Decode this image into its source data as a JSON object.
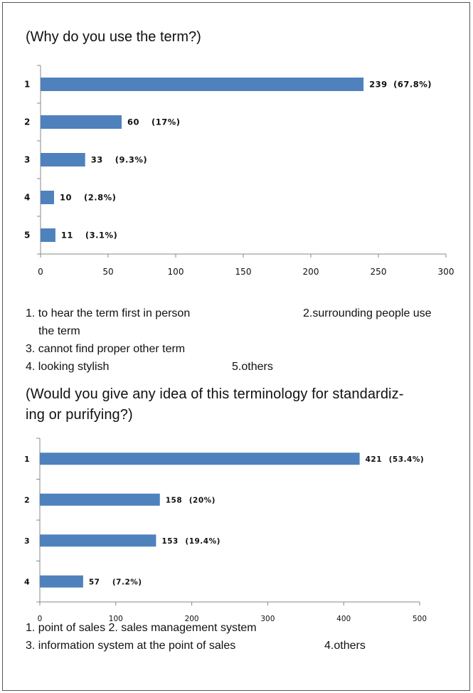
{
  "chart_data": [
    {
      "type": "bar",
      "orientation": "horizontal",
      "title": "(Why do you use the term?)",
      "categories": [
        "1",
        "2",
        "3",
        "4",
        "5"
      ],
      "values": [
        239,
        60,
        33,
        10,
        11
      ],
      "data_labels": [
        "239",
        "60",
        "33",
        "10",
        "11"
      ],
      "percent_labels": [
        "(67.8%)",
        "(17%)",
        "(9.3%)",
        "(2.8%)",
        "(3.1%)"
      ],
      "xlim": [
        0,
        300
      ],
      "xticks": [
        "0",
        "50",
        "100",
        "150",
        "200",
        "250",
        "300"
      ],
      "xtick_values": [
        0,
        50,
        100,
        150,
        200,
        250,
        300
      ],
      "bar_color": "#4f81bd",
      "grid": false
    },
    {
      "type": "bar",
      "orientation": "horizontal",
      "title": "(Would you give any idea of this terminology for standardiz-ing or purifying?)",
      "categories": [
        "1",
        "2",
        "3",
        "4"
      ],
      "values": [
        421,
        158,
        153,
        57
      ],
      "data_labels": [
        "421",
        "158",
        "153",
        "57"
      ],
      "percent_labels": [
        "(53.4%)",
        "(20%)",
        "(19.4%)",
        "(7.2%)"
      ],
      "xlim": [
        0,
        500
      ],
      "xticks": [
        "0",
        "100",
        "200",
        "300",
        "400",
        "500"
      ],
      "xtick_values": [
        0,
        100,
        200,
        300,
        400,
        500
      ],
      "bar_color": "#4f81bd",
      "grid": false
    }
  ],
  "text": {
    "title1": "(Why do you use the term?)",
    "legend1": {
      "a": "1. to hear the term first in person",
      "b": "2.surrounding people use",
      "c": "the term",
      "d": "3. cannot find proper other term",
      "e": "4. looking stylish",
      "f": "5.others"
    },
    "title2_line1": "(Would you give any idea of this terminology for standardiz-",
    "title2_line2": "ing or purifying?)",
    "legend2": {
      "a": "1. point of sales   2. sales management system",
      "b": "3. information system at the point of sales",
      "c": "4.others"
    }
  }
}
